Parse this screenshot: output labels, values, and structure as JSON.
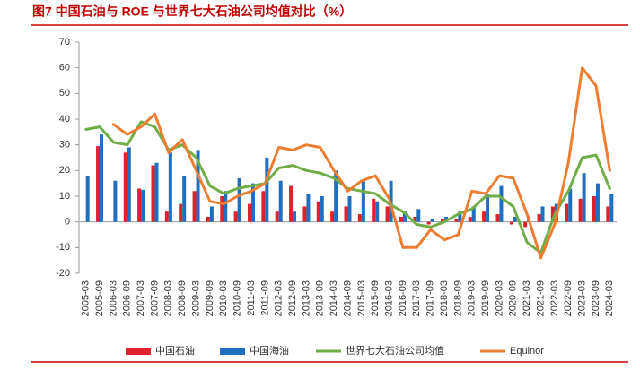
{
  "chart_data": {
    "type": "bar_line",
    "title": "图7  中国石油与 ROE 与世界七大石油公司均值对比（%）",
    "categories": [
      "2005-03",
      "2005-09",
      "2006-03",
      "2006-09",
      "2007-03",
      "2007-09",
      "2008-03",
      "2008-09",
      "2009-03",
      "2009-09",
      "2010-03",
      "2010-09",
      "2011-03",
      "2011-09",
      "2012-03",
      "2012-09",
      "2013-03",
      "2013-09",
      "2014-03",
      "2014-09",
      "2015-03",
      "2015-09",
      "2016-03",
      "2016-09",
      "2017-03",
      "2017-09",
      "2018-03",
      "2018-09",
      "2019-03",
      "2019-09",
      "2020-03",
      "2020-09",
      "2021-03",
      "2021-09",
      "2022-03",
      "2022-09",
      "2023-03",
      "2023-09",
      "2024-03"
    ],
    "series": [
      {
        "name": "中国石油",
        "kind": "bar",
        "color": "#e0202a",
        "values": [
          0,
          29.5,
          0,
          27,
          13,
          22,
          4,
          7,
          12,
          2,
          10,
          4,
          7,
          12,
          4,
          14,
          6,
          8,
          4,
          6,
          3,
          9,
          6,
          2,
          2,
          -1,
          1,
          1,
          2,
          4,
          3,
          -1,
          -2,
          3,
          6,
          7,
          9,
          10,
          6
        ]
      },
      {
        "name": "中国海油",
        "kind": "bar",
        "color": "#1f6fc0",
        "values": [
          18,
          34,
          16,
          29,
          12.5,
          23,
          27,
          18,
          28,
          6,
          12,
          17,
          15,
          25,
          16,
          4,
          11,
          10,
          20,
          10,
          16,
          8,
          16,
          4,
          5,
          1,
          2,
          4,
          6,
          11,
          14,
          2,
          2,
          6,
          7,
          13,
          19,
          15,
          11
        ]
      },
      {
        "name": "世界七大石油公司均值",
        "kind": "line",
        "color": "#70ad47",
        "values": [
          36,
          37,
          31,
          30,
          39,
          37,
          28,
          30,
          25,
          14,
          11,
          13,
          14,
          15,
          21,
          22,
          20,
          19,
          17,
          13,
          12,
          11,
          7,
          4,
          -1,
          -2,
          0,
          3,
          5,
          10,
          10,
          6,
          -8,
          -12,
          3,
          12,
          25,
          26,
          13
        ]
      },
      {
        "name": "Equinor",
        "kind": "line",
        "color": "#ed7d31",
        "values": [
          null,
          null,
          38,
          34,
          37,
          42,
          27,
          32,
          20,
          8,
          7,
          10,
          12,
          15,
          29,
          28,
          30,
          29,
          20,
          12,
          16,
          18,
          9,
          -10,
          -10,
          -3,
          -7,
          -5,
          12,
          11,
          18,
          17,
          3,
          -14,
          -1,
          23,
          60,
          53,
          20
        ]
      }
    ],
    "ylim": [
      -20,
      70
    ],
    "yticks": [
      -20,
      -10,
      0,
      10,
      20,
      30,
      40,
      50,
      60,
      70
    ]
  }
}
